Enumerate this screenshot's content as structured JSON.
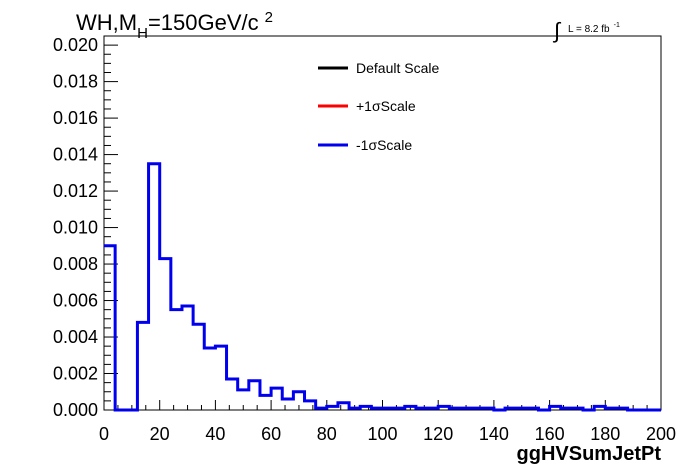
{
  "chart_data": {
    "type": "line",
    "title": {
      "main": "WH,M",
      "subscript": "H",
      "rest": "=150GeV/c",
      "superscript": "2"
    },
    "lumi": {
      "integral": "∫",
      "text": "L = 8.2 fb",
      "superscript": "-1"
    },
    "xlabel": "ggHVSumJetPt",
    "ylabel": "",
    "xlim": [
      0,
      200
    ],
    "ylim": [
      0,
      0.0205
    ],
    "x_ticks": [
      "0",
      "20",
      "40",
      "60",
      "80",
      "100",
      "120",
      "140",
      "160",
      "180",
      "200"
    ],
    "y_ticks": [
      "0.000",
      "0.002",
      "0.004",
      "0.006",
      "0.008",
      "0.010",
      "0.012",
      "0.014",
      "0.016",
      "0.018",
      "0.020"
    ],
    "bin_width": 4,
    "bin_edges_start": 0,
    "legend_position": "top-center",
    "series": [
      {
        "name": "Default Scale",
        "color": "#000000"
      },
      {
        "name": "+1σScale",
        "color": "#ff0000"
      },
      {
        "name": "-1σScale",
        "color": "#0000ee",
        "values": [
          0.009,
          0.0,
          0.0,
          0.0048,
          0.0135,
          0.0083,
          0.0055,
          0.0057,
          0.0047,
          0.0034,
          0.0035,
          0.0017,
          0.0011,
          0.0016,
          0.0008,
          0.0012,
          0.0006,
          0.001,
          0.0005,
          0.0001,
          0.0002,
          0.0004,
          0.0001,
          0.0002,
          0.0001,
          0.0001,
          0.0001,
          0.0002,
          0.0001,
          0.0001,
          0.0002,
          0.0001,
          0.0001,
          0.0001,
          0.0001,
          0.0,
          0.0001,
          0.0001,
          0.0001,
          0.0,
          0.0002,
          0.0001,
          0.0001,
          0.0,
          0.0002,
          0.0001,
          0.0001,
          0.0,
          0.0,
          0.0
        ]
      }
    ]
  }
}
